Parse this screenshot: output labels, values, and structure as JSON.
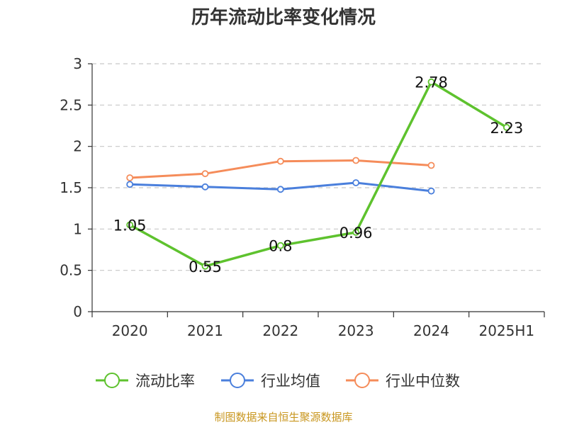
{
  "chart_data": {
    "type": "line",
    "title": "历年流动比率变化情况",
    "categories": [
      "2020",
      "2021",
      "2022",
      "2023",
      "2024",
      "2025H1"
    ],
    "ylim": [
      0,
      3
    ],
    "yticks": [
      "0",
      "0.5",
      "1",
      "1.5",
      "2",
      "2.5",
      "3"
    ],
    "grid": true,
    "legend_position": "bottom",
    "series": [
      {
        "name": "流动比率",
        "color": "#5ec22e",
        "values": [
          1.05,
          0.55,
          0.8,
          0.96,
          2.78,
          2.23
        ],
        "labels": [
          "1.05",
          "0.55",
          "0.8",
          "0.96",
          "2.78",
          "2.23"
        ]
      },
      {
        "name": "行业均值",
        "color": "#4a7fdc",
        "values": [
          1.54,
          1.51,
          1.48,
          1.56,
          1.46,
          null
        ]
      },
      {
        "name": "行业中位数",
        "color": "#f58c5a",
        "values": [
          1.62,
          1.67,
          1.82,
          1.83,
          1.77,
          null
        ]
      }
    ]
  },
  "source": "制图数据来自恒生聚源数据库"
}
